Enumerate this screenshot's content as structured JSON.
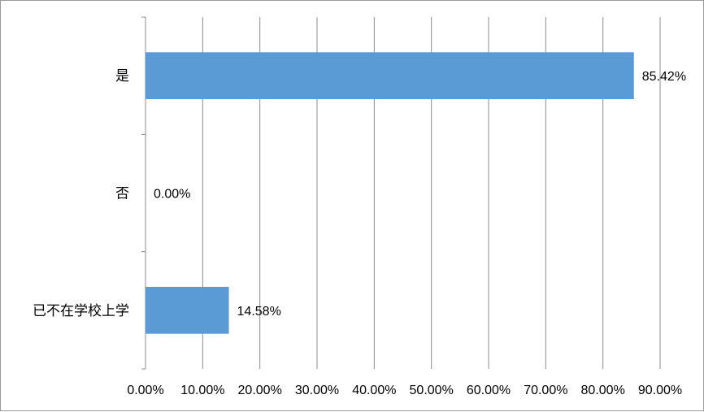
{
  "chart_data": {
    "type": "bar",
    "orientation": "horizontal",
    "categories": [
      "是",
      "否",
      "已不在学校上学"
    ],
    "values": [
      85.42,
      0.0,
      14.58
    ],
    "value_labels": [
      "85.42%",
      "0.00%",
      "14.58%"
    ],
    "x_ticks": [
      "0.00%",
      "10.00%",
      "20.00%",
      "30.00%",
      "40.00%",
      "50.00%",
      "60.00%",
      "70.00%",
      "80.00%",
      "90.00%"
    ],
    "xlim": [
      0,
      90
    ],
    "grid": "vertical",
    "bar_color": "#5b9bd5",
    "title": "",
    "xlabel": "",
    "ylabel": ""
  }
}
